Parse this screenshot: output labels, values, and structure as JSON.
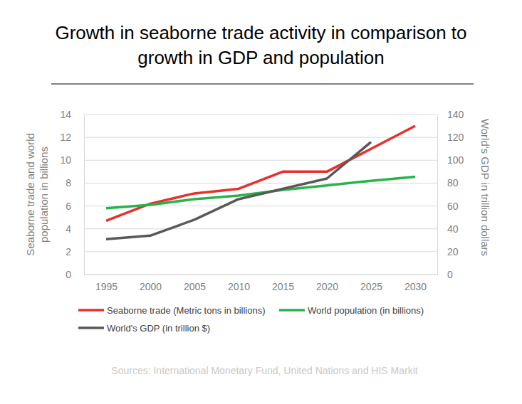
{
  "chart_data": {
    "type": "line",
    "title": "Growth in seaborne trade activity in comparison to growth in GDP and population",
    "y_label": "Seaborne trade and world population in billions",
    "y2_label": "World's GDP in trillion dollars",
    "source": "Sources: International Monetary Fund, United Nations and HIS Markit",
    "categories": [
      "1995",
      "2000",
      "2005",
      "2010",
      "2015",
      "2020",
      "2025",
      "2030"
    ],
    "ylim": [
      0,
      14
    ],
    "yticks": [
      0,
      2,
      4,
      6,
      8,
      10,
      12,
      14
    ],
    "y2lim": [
      0,
      140
    ],
    "y2ticks": [
      0,
      20,
      40,
      60,
      80,
      100,
      120,
      140
    ],
    "grid": true,
    "legend": "bottom",
    "series": [
      {
        "name": "Seaborne trade (Metric tons in billions)",
        "color": "#e8302a",
        "values": [
          4.7,
          6.2,
          7.1,
          7.5,
          9.0,
          9.0,
          11.0,
          13.0
        ]
      },
      {
        "name": "World population (in billions)",
        "color": "#2bb24c",
        "values": [
          5.8,
          6.1,
          6.6,
          6.9,
          7.4,
          7.8,
          8.2,
          8.55
        ]
      },
      {
        "name": "World's GDP (in trillion $)",
        "color": "#595959",
        "axis": "y2",
        "values": [
          31,
          34,
          48,
          66,
          75,
          84,
          116,
          null
        ]
      }
    ]
  }
}
